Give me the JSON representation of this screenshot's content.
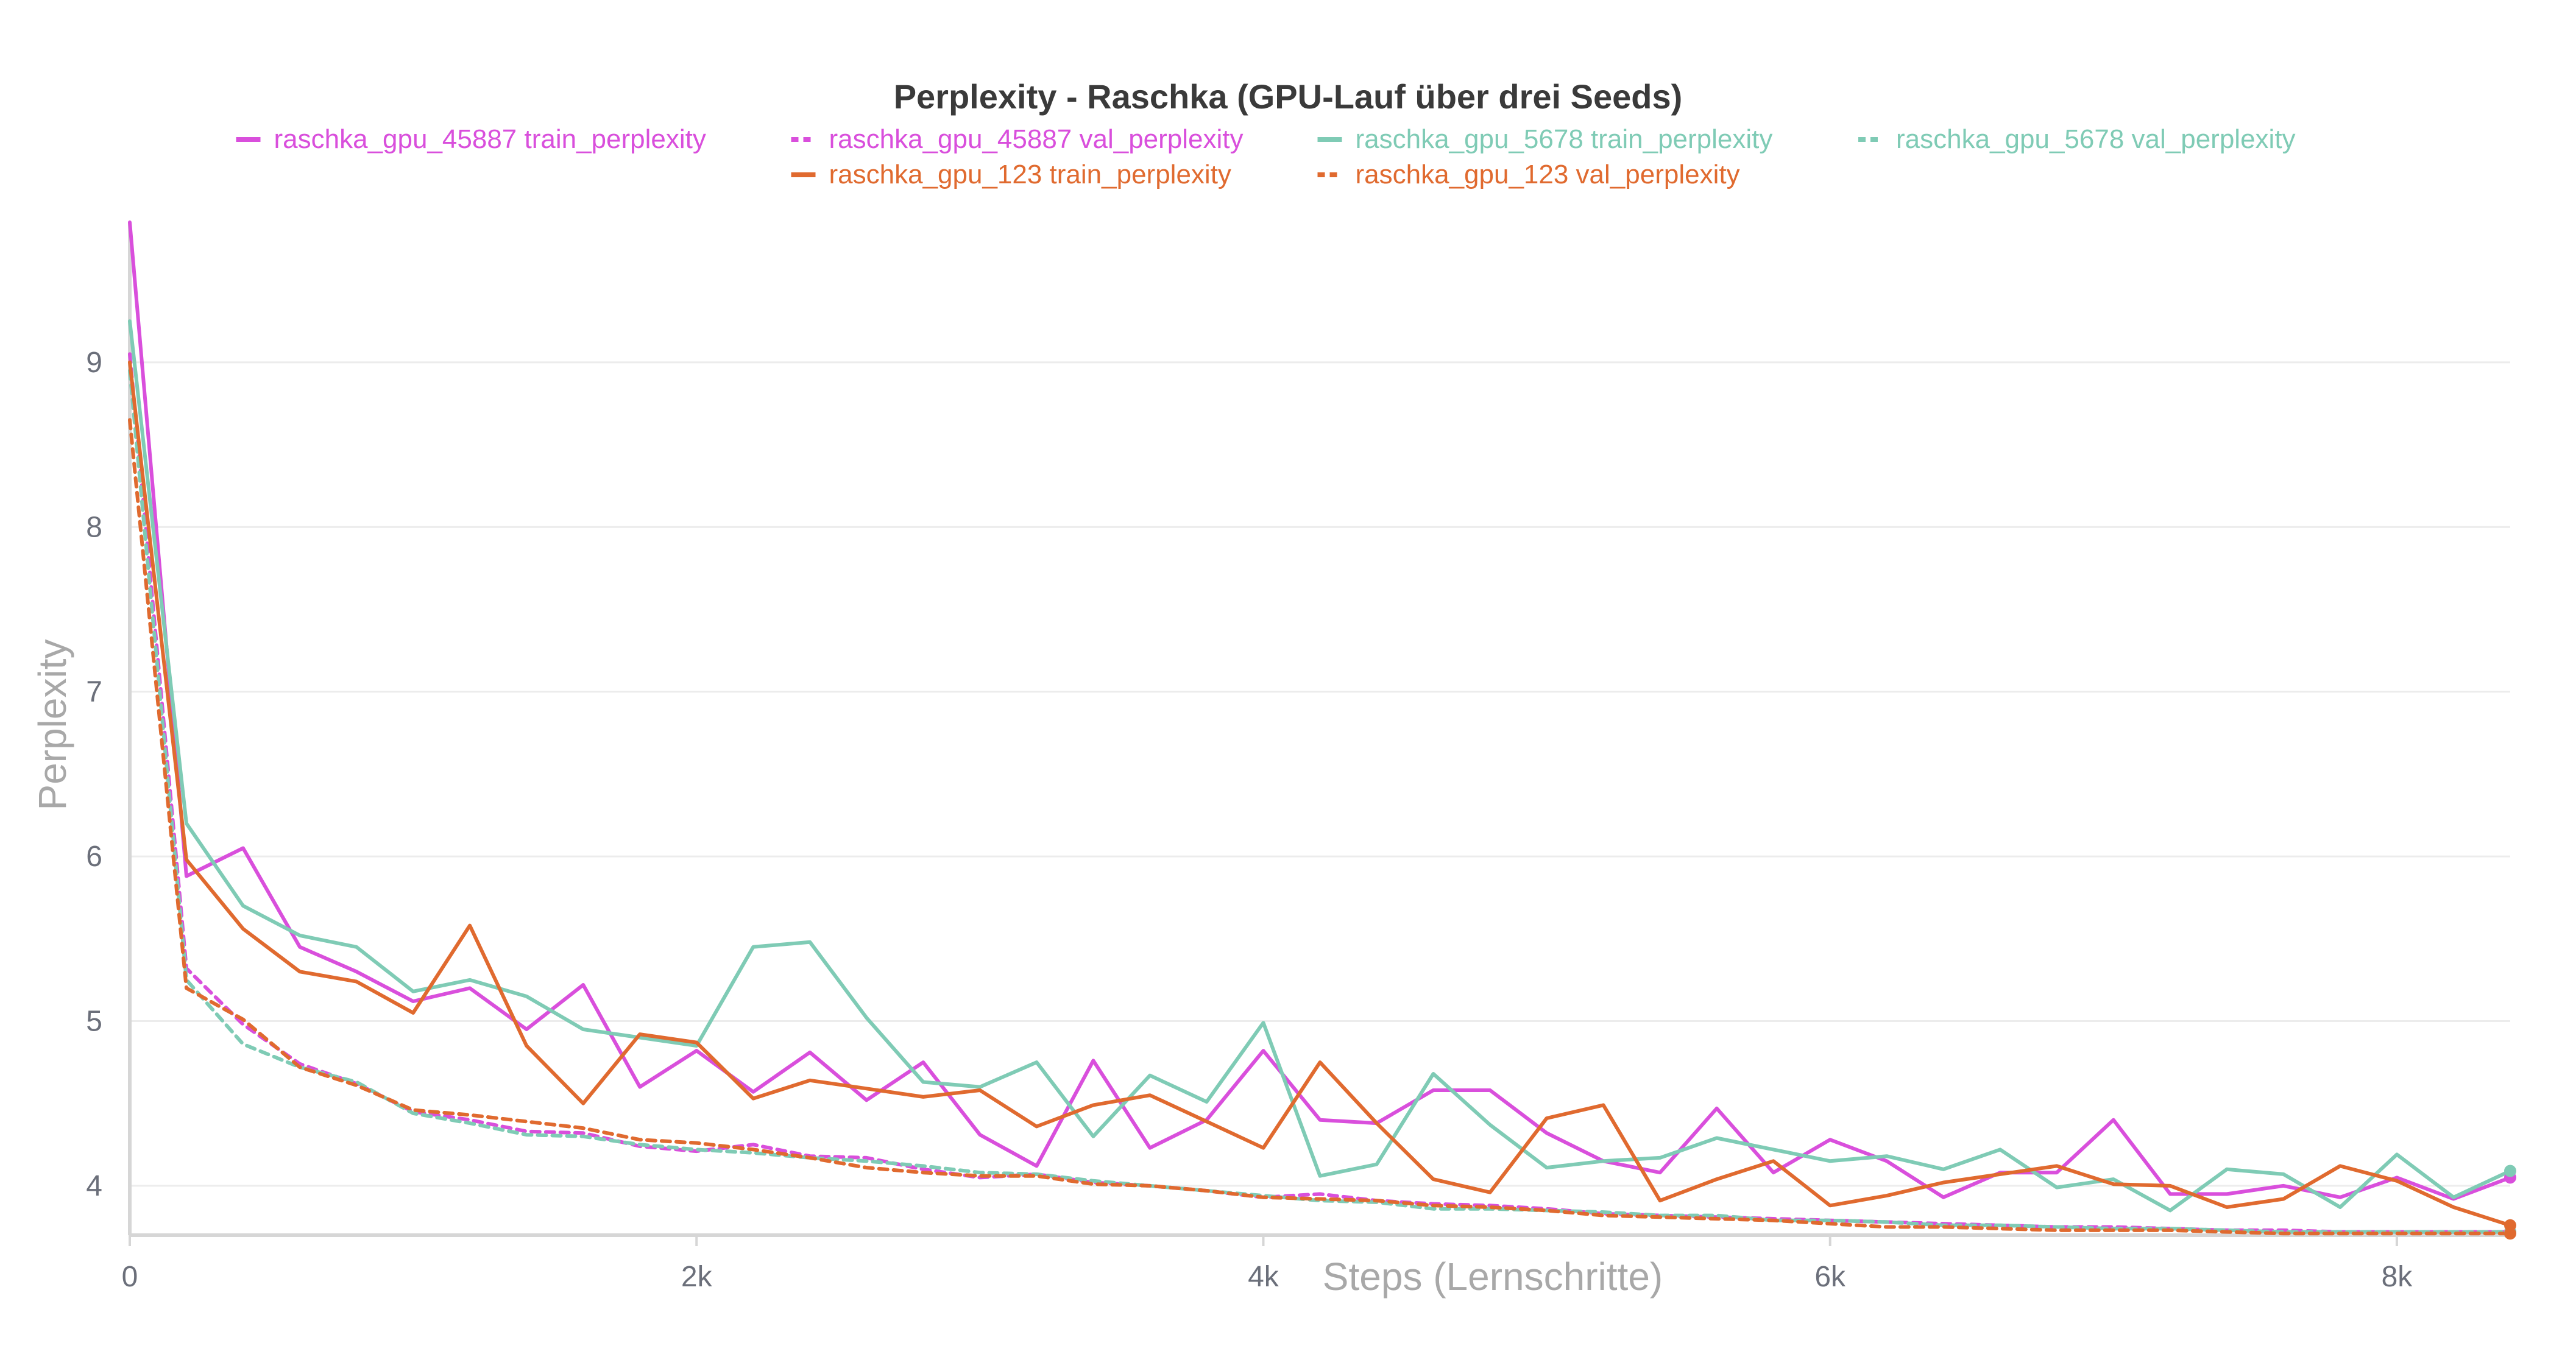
{
  "chart_data": {
    "type": "line",
    "title": "Perplexity - Raschka (GPU-Lauf über drei Seeds)",
    "xlabel": "Steps (Lernschritte)",
    "ylabel": "Perplexity",
    "xlim": [
      0,
      8400
    ],
    "ylim": [
      3.7,
      9.85
    ],
    "x_ticks": [
      0,
      2000,
      4000,
      6000,
      8000
    ],
    "x_tick_labels": [
      "0",
      "2k",
      "4k",
      "6k",
      "8k"
    ],
    "y_ticks": [
      4,
      5,
      6,
      7,
      8,
      9
    ],
    "y_tick_labels": [
      "4",
      "5",
      "6",
      "7",
      "8",
      "9"
    ],
    "grid": true,
    "legend_position": "top-center",
    "series": [
      {
        "name": "raschka_gpu_45887 train_perplexity",
        "color": "#d94fdc",
        "dash": "solid",
        "x": [
          0,
          200,
          400,
          600,
          800,
          1000,
          1200,
          1400,
          1600,
          1800,
          2000,
          2200,
          2400,
          2600,
          2800,
          3000,
          3200,
          3400,
          3600,
          3800,
          4000,
          4200,
          4400,
          4600,
          4800,
          5000,
          5200,
          5400,
          5600,
          5800,
          6000,
          6200,
          6400,
          6600,
          6800,
          7000,
          7200,
          7400,
          7600,
          7800,
          8000,
          8200,
          8400
        ],
        "y": [
          9.85,
          5.88,
          6.05,
          5.45,
          5.3,
          5.12,
          5.2,
          4.95,
          5.22,
          4.6,
          4.82,
          4.57,
          4.81,
          4.52,
          4.75,
          4.31,
          4.12,
          4.76,
          4.23,
          4.4,
          4.82,
          4.4,
          4.38,
          4.58,
          4.58,
          4.32,
          4.15,
          4.08,
          4.47,
          4.08,
          4.28,
          4.15,
          3.93,
          4.08,
          4.08,
          4.4,
          3.95,
          3.95,
          4.0,
          3.93,
          4.05,
          3.92,
          4.05
        ]
      },
      {
        "name": "raschka_gpu_45887 val_perplexity",
        "color": "#d94fdc",
        "dash": "dashed",
        "x": [
          0,
          200,
          400,
          600,
          800,
          1000,
          1200,
          1400,
          1600,
          1800,
          2000,
          2200,
          2400,
          2600,
          2800,
          3000,
          3200,
          3400,
          3600,
          3800,
          4000,
          4200,
          4400,
          4600,
          4800,
          5000,
          5200,
          5400,
          5600,
          5800,
          6000,
          6200,
          6400,
          6600,
          6800,
          7000,
          7200,
          7400,
          7600,
          7800,
          8000,
          8200,
          8400
        ],
        "y": [
          9.05,
          5.32,
          4.98,
          4.74,
          4.62,
          4.45,
          4.4,
          4.33,
          4.32,
          4.24,
          4.21,
          4.25,
          4.18,
          4.17,
          4.1,
          4.05,
          4.07,
          4.02,
          4.0,
          3.97,
          3.93,
          3.95,
          3.91,
          3.89,
          3.88,
          3.86,
          3.83,
          3.82,
          3.81,
          3.8,
          3.79,
          3.78,
          3.77,
          3.76,
          3.75,
          3.75,
          3.74,
          3.73,
          3.73,
          3.72,
          3.72,
          3.72,
          3.72
        ]
      },
      {
        "name": "raschka_gpu_5678 train_perplexity",
        "color": "#7fcbb5",
        "dash": "solid",
        "x": [
          0,
          200,
          400,
          600,
          800,
          1000,
          1200,
          1400,
          1600,
          1800,
          2000,
          2200,
          2400,
          2600,
          2800,
          3000,
          3200,
          3400,
          3600,
          3800,
          4000,
          4200,
          4400,
          4600,
          4800,
          5000,
          5200,
          5400,
          5600,
          5800,
          6000,
          6200,
          6400,
          6600,
          6800,
          7000,
          7200,
          7400,
          7600,
          7800,
          8000,
          8200,
          8400
        ],
        "y": [
          9.25,
          6.2,
          5.7,
          5.52,
          5.45,
          5.18,
          5.25,
          5.15,
          4.95,
          4.9,
          4.85,
          5.45,
          5.48,
          5.02,
          4.63,
          4.6,
          4.75,
          4.3,
          4.67,
          4.51,
          4.99,
          4.06,
          4.13,
          4.68,
          4.37,
          4.11,
          4.15,
          4.17,
          4.29,
          4.22,
          4.15,
          4.18,
          4.1,
          4.22,
          3.99,
          4.04,
          3.85,
          4.1,
          4.07,
          3.87,
          4.19,
          3.93,
          4.09
        ]
      },
      {
        "name": "raschka_gpu_5678 val_perplexity",
        "color": "#7fcbb5",
        "dash": "dashed",
        "x": [
          0,
          200,
          400,
          600,
          800,
          1000,
          1200,
          1400,
          1600,
          1800,
          2000,
          2200,
          2400,
          2600,
          2800,
          3000,
          3200,
          3400,
          3600,
          3800,
          4000,
          4200,
          4400,
          4600,
          4800,
          5000,
          5200,
          5400,
          5600,
          5800,
          6000,
          6200,
          6400,
          6600,
          6800,
          7000,
          7200,
          7400,
          7600,
          7800,
          8000,
          8200,
          8400
        ],
        "y": [
          8.95,
          5.25,
          4.86,
          4.72,
          4.63,
          4.44,
          4.38,
          4.31,
          4.3,
          4.25,
          4.22,
          4.2,
          4.17,
          4.15,
          4.12,
          4.08,
          4.07,
          4.03,
          4.0,
          3.97,
          3.94,
          3.91,
          3.9,
          3.86,
          3.86,
          3.85,
          3.84,
          3.82,
          3.82,
          3.79,
          3.79,
          3.78,
          3.76,
          3.76,
          3.75,
          3.74,
          3.74,
          3.73,
          3.72,
          3.72,
          3.72,
          3.72,
          3.72
        ]
      },
      {
        "name": "raschka_gpu_123 train_perplexity",
        "color": "#e06a2f",
        "dash": "solid",
        "x": [
          0,
          200,
          400,
          600,
          800,
          1000,
          1200,
          1400,
          1600,
          1800,
          2000,
          2200,
          2400,
          2600,
          2800,
          3000,
          3200,
          3400,
          3600,
          3800,
          4000,
          4200,
          4400,
          4600,
          4800,
          5000,
          5200,
          5400,
          5600,
          5800,
          6000,
          6200,
          6400,
          6600,
          6800,
          7000,
          7200,
          7400,
          7600,
          7800,
          8000,
          8200,
          8400
        ],
        "y": [
          9.0,
          5.98,
          5.56,
          5.3,
          5.24,
          5.05,
          5.58,
          4.85,
          4.5,
          4.92,
          4.87,
          4.53,
          4.64,
          4.59,
          4.54,
          4.58,
          4.36,
          4.49,
          4.55,
          4.39,
          4.23,
          4.75,
          4.38,
          4.04,
          3.96,
          4.41,
          4.49,
          3.91,
          4.04,
          4.15,
          3.88,
          3.94,
          4.02,
          4.07,
          4.12,
          4.01,
          4.0,
          3.87,
          3.92,
          4.12,
          4.03,
          3.87,
          3.76
        ]
      },
      {
        "name": "raschka_gpu_123 val_perplexity",
        "color": "#e06a2f",
        "dash": "dashed",
        "x": [
          0,
          200,
          400,
          600,
          800,
          1000,
          1200,
          1400,
          1600,
          1800,
          2000,
          2200,
          2400,
          2600,
          2800,
          3000,
          3200,
          3400,
          3600,
          3800,
          4000,
          4200,
          4400,
          4600,
          4800,
          5000,
          5200,
          5400,
          5600,
          5800,
          6000,
          6200,
          6400,
          6600,
          6800,
          7000,
          7200,
          7400,
          7600,
          7800,
          8000,
          8200,
          8400
        ],
        "y": [
          8.65,
          5.2,
          5.01,
          4.72,
          4.61,
          4.46,
          4.43,
          4.39,
          4.35,
          4.28,
          4.26,
          4.22,
          4.17,
          4.11,
          4.08,
          4.06,
          4.06,
          4.01,
          4.0,
          3.97,
          3.93,
          3.92,
          3.91,
          3.88,
          3.87,
          3.85,
          3.82,
          3.81,
          3.8,
          3.79,
          3.77,
          3.75,
          3.75,
          3.74,
          3.73,
          3.73,
          3.73,
          3.72,
          3.71,
          3.71,
          3.71,
          3.71,
          3.71
        ]
      }
    ]
  }
}
